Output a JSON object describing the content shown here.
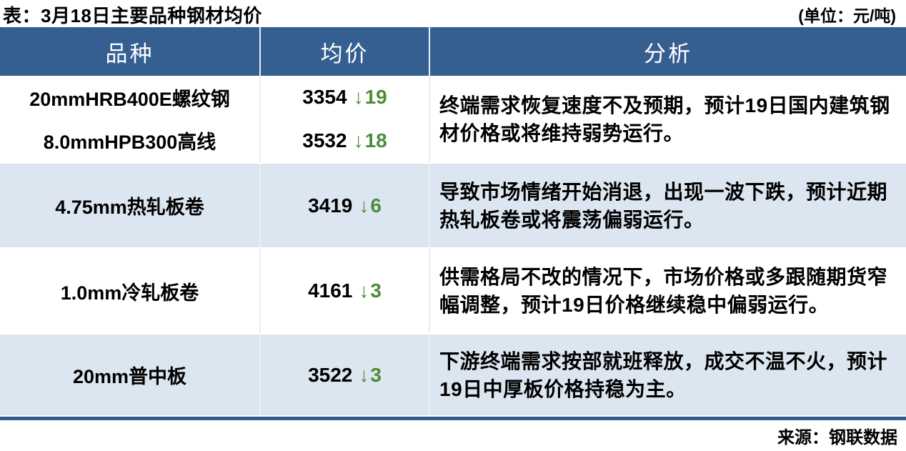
{
  "title": "表：3月18日主要品种钢材均价",
  "unit_note": "(单位：元/吨)",
  "source": "来源：钢联数据",
  "colors": {
    "header_bg": "#365f91",
    "stripe_bg": "#dce6f1",
    "down_green": "#4e8c3a",
    "bottom_rule": "#365f91"
  },
  "table": {
    "headers": [
      "品种",
      "均价",
      "分析"
    ],
    "rows": [
      {
        "varieties": [
          "20mmHRB400E螺纹钢",
          "8.0mmHPB300高线"
        ],
        "prices": [
          {
            "value": "3354",
            "arrow": "↓",
            "change": "19"
          },
          {
            "value": "3532",
            "arrow": "↓",
            "change": "18"
          }
        ],
        "analysis": "终端需求恢复速度不及预期，预计19日国内建筑钢材价格或将维持弱势运行。"
      },
      {
        "varieties": [
          "4.75mm热轧板卷"
        ],
        "prices": [
          {
            "value": "3419",
            "arrow": "↓",
            "change": "6"
          }
        ],
        "analysis": "导致市场情绪开始消退，出现一波下跌，预计近期热轧板卷或将震荡偏弱运行。"
      },
      {
        "varieties": [
          "1.0mm冷轧板卷"
        ],
        "prices": [
          {
            "value": "4161",
            "arrow": "↓",
            "change": "3"
          }
        ],
        "analysis": "供需格局不改的情况下，市场价格或多跟随期货窄幅调整，预计19日价格继续稳中偏弱运行。"
      },
      {
        "varieties": [
          "20mm普中板"
        ],
        "prices": [
          {
            "value": "3522",
            "arrow": "↓",
            "change": "3"
          }
        ],
        "analysis": "下游终端需求按部就班释放，成交不温不火，预计19日中厚板价格持稳为主。"
      }
    ]
  },
  "chart_data": {
    "type": "table",
    "title": "表：3月18日主要品种钢材均价",
    "unit": "元/吨",
    "columns": [
      "品种",
      "均价",
      "分析"
    ],
    "items": [
      {
        "variety": "20mmHRB400E螺纹钢",
        "avg_price": 3354,
        "change": -19
      },
      {
        "variety": "8.0mmHPB300高线",
        "avg_price": 3532,
        "change": -18
      },
      {
        "variety": "4.75mm热轧板卷",
        "avg_price": 3419,
        "change": -6
      },
      {
        "variety": "1.0mm冷轧板卷",
        "avg_price": 4161,
        "change": -3
      },
      {
        "variety": "20mm普中板",
        "avg_price": 3522,
        "change": -3
      }
    ],
    "source": "钢联数据"
  }
}
